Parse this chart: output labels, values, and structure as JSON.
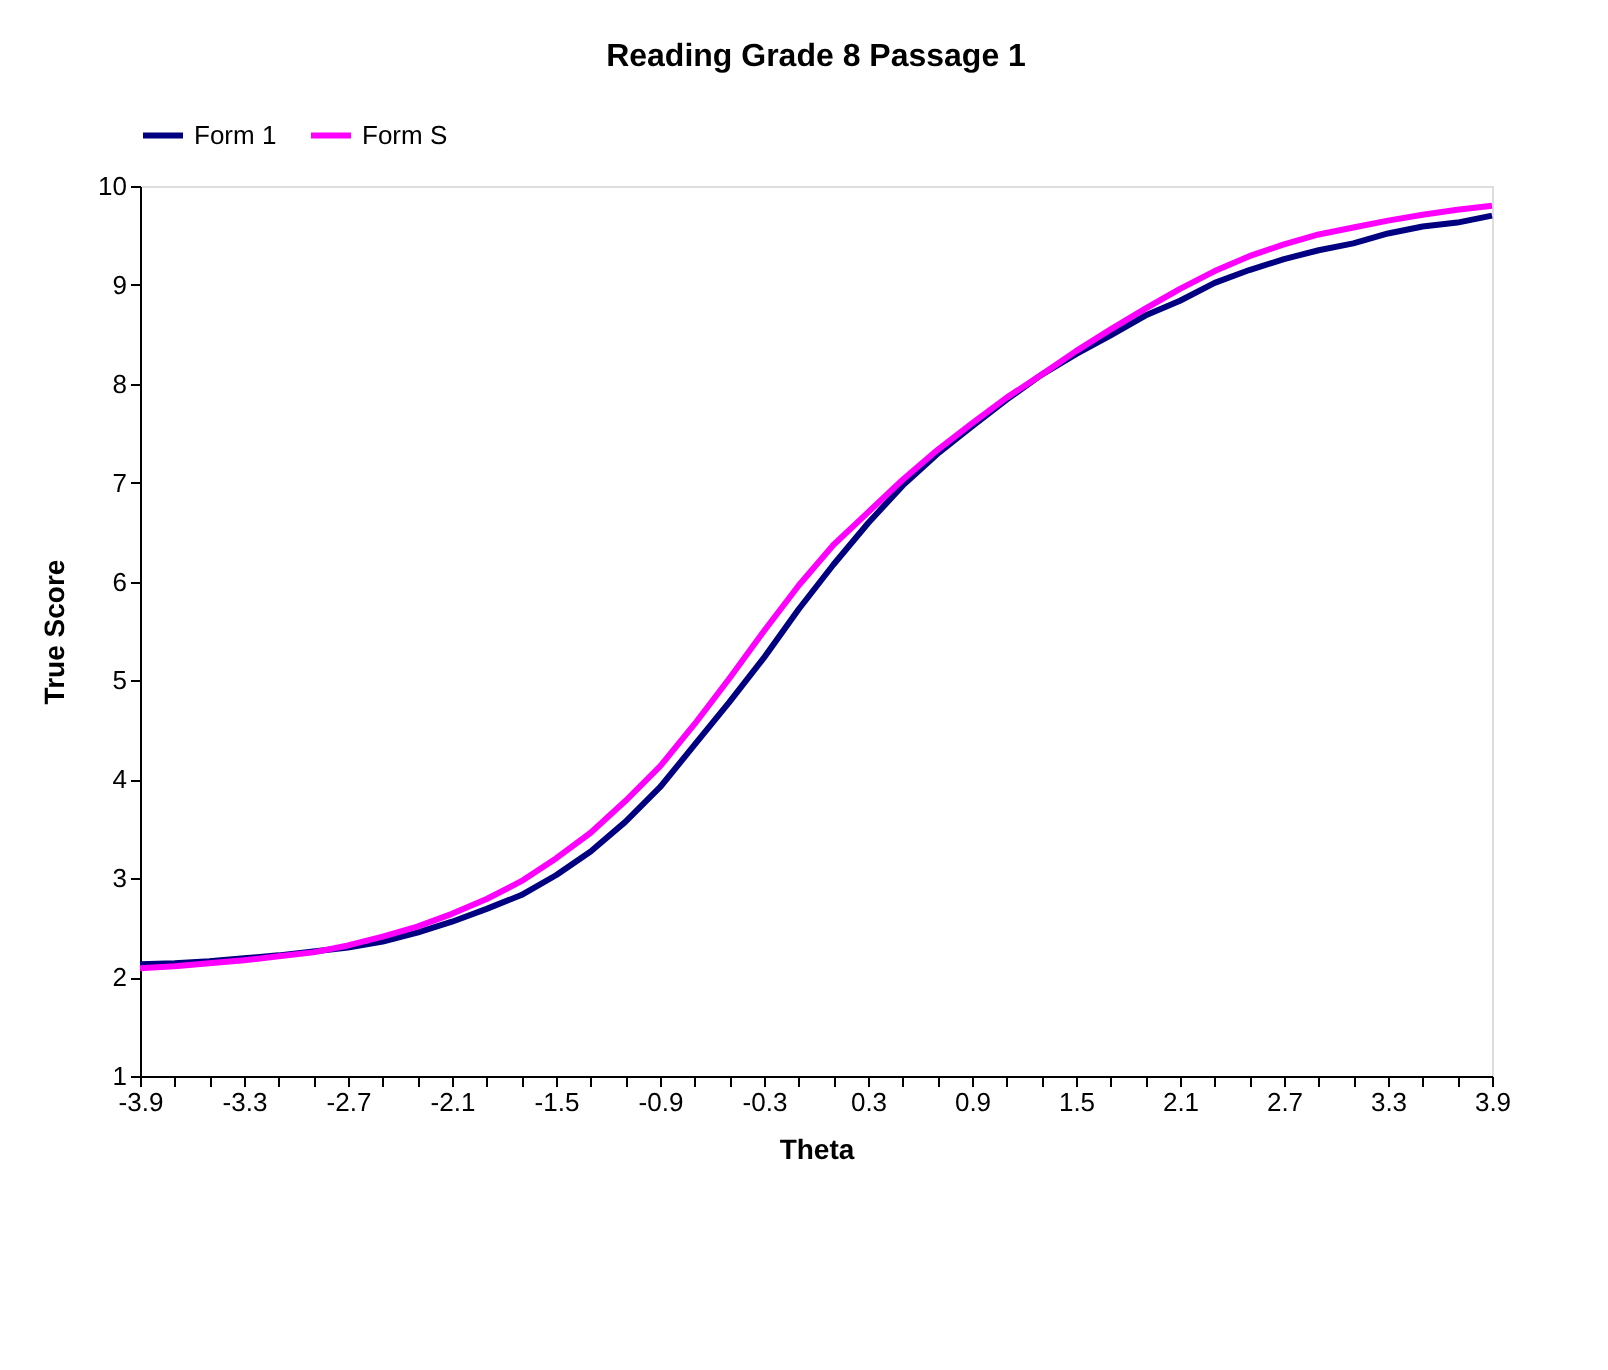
{
  "chart_data": {
    "type": "line",
    "title": "Reading Grade 8 Passage 1",
    "xlabel": "Theta",
    "ylabel": "True Score",
    "categories": [
      "-3.9",
      null,
      null,
      "-3.3",
      null,
      null,
      "-2.7",
      null,
      null,
      "-2.1",
      null,
      null,
      "-1.5",
      null,
      null,
      "-0.9",
      null,
      null,
      "-0.3",
      null,
      null,
      "0.3",
      null,
      null,
      "0.9",
      null,
      null,
      "1.5",
      null,
      null,
      "2.1",
      null,
      null,
      "2.7",
      null,
      null,
      "3.3",
      null,
      null,
      "3.9"
    ],
    "series": [
      {
        "name": "Form 1",
        "color": "#000080",
        "values": [
          2.13,
          2.14,
          2.16,
          2.19,
          2.22,
          2.26,
          2.3,
          2.36,
          2.45,
          2.56,
          2.69,
          2.83,
          3.03,
          3.27,
          3.57,
          3.92,
          4.35,
          4.78,
          5.23,
          5.72,
          6.17,
          6.59,
          6.97,
          7.29,
          7.57,
          7.84,
          8.09,
          8.3,
          8.49,
          8.69,
          8.84,
          9.02,
          9.15,
          9.26,
          9.35,
          9.42,
          9.52,
          9.59,
          9.63,
          9.7
        ]
      },
      {
        "name": "Form S",
        "color": "#ff00ff",
        "values": [
          2.09,
          2.11,
          2.14,
          2.17,
          2.21,
          2.25,
          2.32,
          2.41,
          2.51,
          2.64,
          2.79,
          2.97,
          3.2,
          3.46,
          3.78,
          4.13,
          4.56,
          5.02,
          5.5,
          5.96,
          6.37,
          6.7,
          7.03,
          7.33,
          7.6,
          7.86,
          8.09,
          8.33,
          8.55,
          8.76,
          8.96,
          9.14,
          9.29,
          9.41,
          9.51,
          9.58,
          9.65,
          9.71,
          9.76,
          9.8
        ]
      }
    ],
    "ylim": [
      1,
      10
    ],
    "yticks": [
      1,
      2,
      3,
      4,
      5,
      6,
      7,
      8,
      9,
      10
    ],
    "grid": false,
    "legend": "top",
    "marker": "none",
    "line_style": "solid"
  }
}
